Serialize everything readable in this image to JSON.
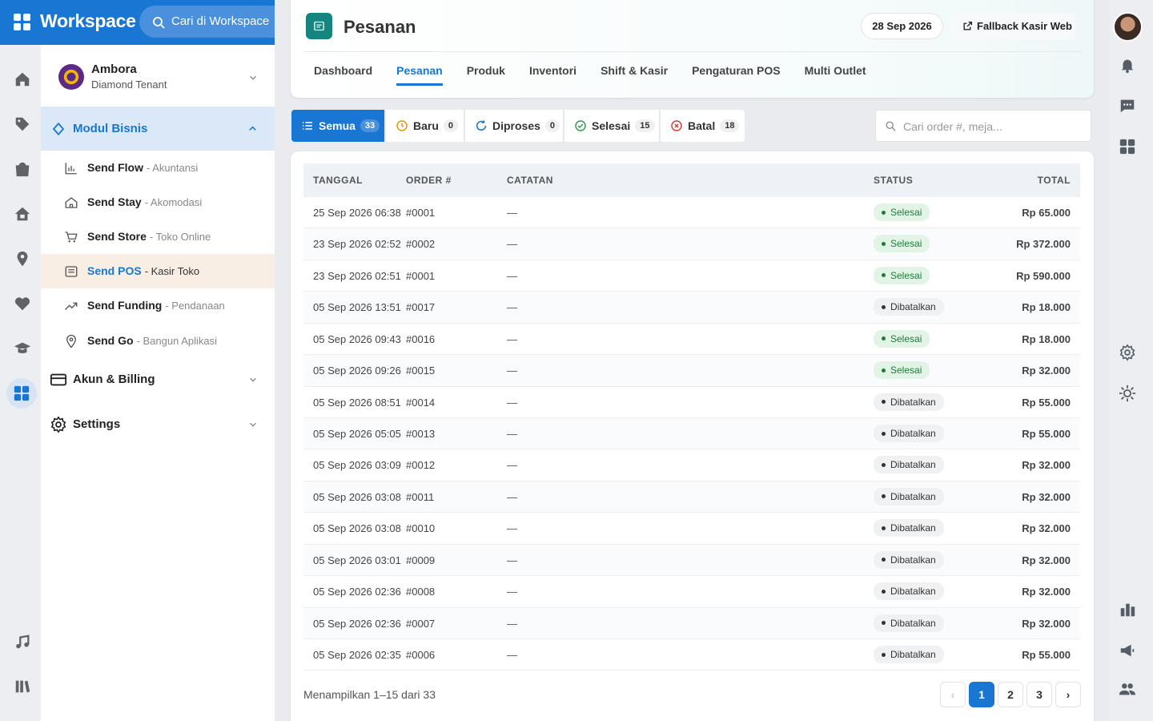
{
  "topbar": {
    "brand": "Workspace",
    "search_placeholder": "Cari di Workspace"
  },
  "account": {
    "name": "Ambora",
    "plan": "Diamond Tenant"
  },
  "menu": {
    "group": "Modul Bisnis",
    "items": [
      {
        "name": "Send Flow",
        "desc": "- Akuntansi"
      },
      {
        "name": "Send Stay",
        "desc": "- Akomodasi"
      },
      {
        "name": "Send Store",
        "desc": "- Toko Online"
      },
      {
        "name": "Send POS",
        "desc": "- Kasir Toko"
      },
      {
        "name": "Send Funding",
        "desc": "- Pendanaan"
      },
      {
        "name": "Send Go",
        "desc": "- Bangun Aplikasi"
      }
    ],
    "sections": [
      "Akun & Billing",
      "Settings"
    ]
  },
  "page": {
    "title": "Pesanan",
    "date": "28 Sep 2026",
    "action": "Fallback Kasir Web",
    "tabs": [
      "Dashboard",
      "Pesanan",
      "Produk",
      "Inventori",
      "Shift & Kasir",
      "Pengaturan POS",
      "Multi Outlet"
    ]
  },
  "filters": [
    {
      "label": "Semua",
      "count": 33
    },
    {
      "label": "Baru",
      "count": 0
    },
    {
      "label": "Diproses",
      "count": 0
    },
    {
      "label": "Selesai",
      "count": 15
    },
    {
      "label": "Batal",
      "count": 18
    }
  ],
  "search_placeholder": "Cari order #, meja...",
  "table": {
    "columns": [
      "TANGGAL",
      "ORDER #",
      "CATATAN",
      "STATUS",
      "TOTAL"
    ],
    "rows": [
      [
        "25 Sep 2026 06:38",
        "#0001",
        "—",
        "Selesai",
        "Rp 65.000"
      ],
      [
        "23 Sep 2026 02:52",
        "#0002",
        "—",
        "Selesai",
        "Rp 372.000"
      ],
      [
        "23 Sep 2026 02:51",
        "#0001",
        "—",
        "Selesai",
        "Rp 590.000"
      ],
      [
        "05 Sep 2026 13:51",
        "#0017",
        "—",
        "Dibatalkan",
        "Rp 18.000"
      ],
      [
        "05 Sep 2026 09:43",
        "#0016",
        "—",
        "Selesai",
        "Rp 18.000"
      ],
      [
        "05 Sep 2026 09:26",
        "#0015",
        "—",
        "Selesai",
        "Rp 32.000"
      ],
      [
        "05 Sep 2026 08:51",
        "#0014",
        "—",
        "Dibatalkan",
        "Rp 55.000"
      ],
      [
        "05 Sep 2026 05:05",
        "#0013",
        "—",
        "Dibatalkan",
        "Rp 55.000"
      ],
      [
        "05 Sep 2026 03:09",
        "#0012",
        "—",
        "Dibatalkan",
        "Rp 32.000"
      ],
      [
        "05 Sep 2026 03:08",
        "#0011",
        "—",
        "Dibatalkan",
        "Rp 32.000"
      ],
      [
        "05 Sep 2026 03:08",
        "#0010",
        "—",
        "Dibatalkan",
        "Rp 32.000"
      ],
      [
        "05 Sep 2026 03:01",
        "#0009",
        "—",
        "Dibatalkan",
        "Rp 32.000"
      ],
      [
        "05 Sep 2026 02:36",
        "#0008",
        "—",
        "Dibatalkan",
        "Rp 32.000"
      ],
      [
        "05 Sep 2026 02:36",
        "#0007",
        "—",
        "Dibatalkan",
        "Rp 32.000"
      ],
      [
        "05 Sep 2026 02:35",
        "#0006",
        "—",
        "Dibatalkan",
        "Rp 55.000"
      ]
    ]
  },
  "footer": {
    "summary": "Menampilkan 1–15 dari 33",
    "pages": [
      "‹",
      "1",
      "2",
      "3",
      "›"
    ]
  }
}
